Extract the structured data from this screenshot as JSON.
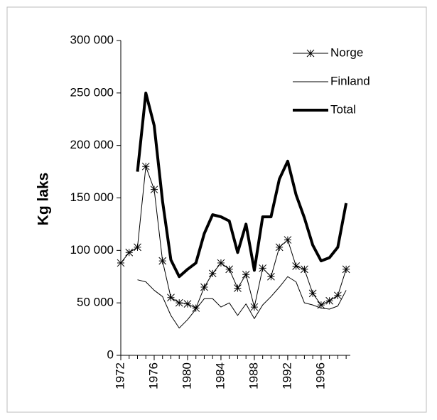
{
  "chart_data": {
    "type": "line",
    "ylabel": "Kg laks",
    "x": [
      1972,
      1973,
      1974,
      1975,
      1976,
      1977,
      1978,
      1979,
      1980,
      1981,
      1982,
      1983,
      1984,
      1985,
      1986,
      1987,
      1988,
      1989,
      1990,
      1991,
      1992,
      1993,
      1994,
      1995,
      1996,
      1997,
      1998,
      1999
    ],
    "series": [
      {
        "name": "Norge",
        "color": "#000000",
        "marker": "asterisk",
        "width": 1,
        "values": [
          88000,
          98000,
          103000,
          180000,
          158000,
          90000,
          55000,
          50000,
          49000,
          45000,
          65000,
          78000,
          88000,
          82000,
          64000,
          77000,
          46000,
          83000,
          75000,
          103000,
          110000,
          85000,
          82000,
          59000,
          48000,
          52000,
          57000,
          82000
        ]
      },
      {
        "name": "Finland",
        "color": "#000000",
        "width": 1,
        "values": [
          null,
          null,
          72000,
          70000,
          62000,
          56000,
          38000,
          26000,
          34000,
          44000,
          54000,
          54000,
          46000,
          50000,
          38000,
          49000,
          35000,
          48000,
          56000,
          65000,
          75000,
          70000,
          50000,
          48000,
          45000,
          44000,
          47000,
          62000
        ]
      },
      {
        "name": "Total",
        "color": "#000000",
        "width": 4,
        "values": [
          null,
          null,
          175000,
          250000,
          219000,
          147000,
          91000,
          75000,
          82000,
          88000,
          116000,
          134000,
          132000,
          128000,
          98000,
          125000,
          81000,
          132000,
          132000,
          168000,
          185000,
          153000,
          131000,
          105000,
          90000,
          93000,
          103000,
          145000
        ]
      }
    ],
    "xlim": [
      1972,
      1999.5
    ],
    "xticks": [
      1972,
      1976,
      1980,
      1984,
      1988,
      1992,
      1996
    ],
    "ylim": [
      0,
      300000
    ],
    "yticks": [
      {
        "value": 0,
        "label": "0"
      },
      {
        "value": 50000,
        "label": "50 000"
      },
      {
        "value": 100000,
        "label": "100 000"
      },
      {
        "value": 150000,
        "label": "150 000"
      },
      {
        "value": 200000,
        "label": "200 000"
      },
      {
        "value": 250000,
        "label": "250 000"
      },
      {
        "value": 300000,
        "label": "300 000"
      }
    ],
    "legend": "top-right"
  }
}
